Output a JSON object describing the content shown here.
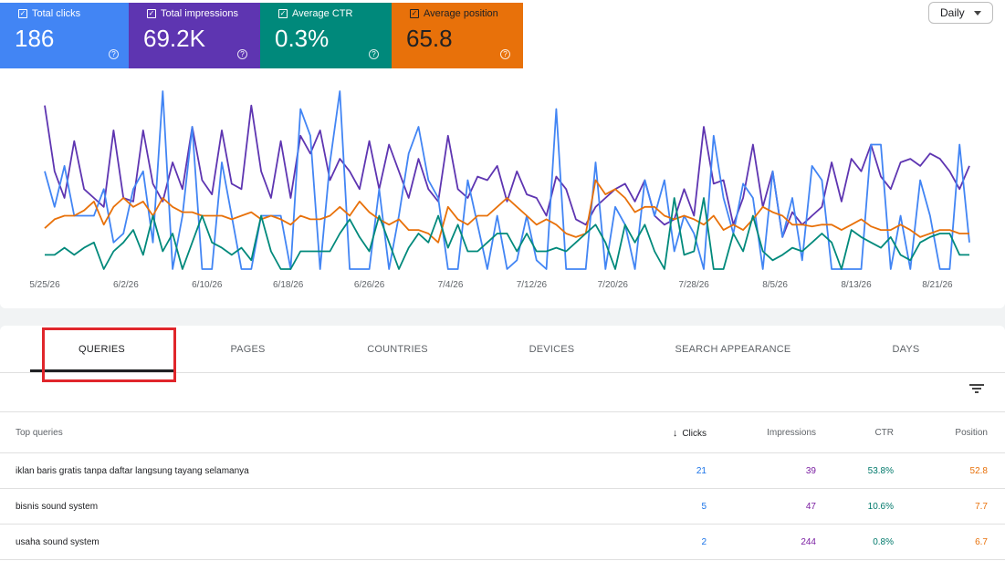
{
  "metrics": [
    {
      "label": "Total clicks",
      "value": "186",
      "color": "#4285f4",
      "key": "clicks"
    },
    {
      "label": "Total impressions",
      "value": "69.2K",
      "color": "#5e35b1",
      "key": "impressions"
    },
    {
      "label": "Average CTR",
      "value": "0.3%",
      "color": "#00897b",
      "key": "ctr"
    },
    {
      "label": "Average position",
      "value": "65.8",
      "color": "#e8710a",
      "key": "position"
    }
  ],
  "period_select": {
    "value": "Daily"
  },
  "chart_data": {
    "type": "line",
    "x_ticks": [
      "5/25/26",
      "6/2/26",
      "6/10/26",
      "6/18/26",
      "6/26/26",
      "7/4/26",
      "7/12/26",
      "7/20/26",
      "7/28/26",
      "8/5/26",
      "8/13/26",
      "8/21/26"
    ],
    "grid": false,
    "legend": "none",
    "note": "Four series normalized to a 0-100 relative scale (no y-axis shown)",
    "series": [
      {
        "color": "#5e35b1",
        "values": [
          92,
          55,
          40,
          72,
          45,
          40,
          35,
          78,
          40,
          38,
          78,
          48,
          38,
          60,
          45,
          80,
          50,
          42,
          78,
          48,
          45,
          92,
          55,
          40,
          72,
          40,
          75,
          65,
          78,
          50,
          62,
          55,
          45,
          72,
          45,
          70,
          55,
          40,
          62,
          45,
          38,
          75,
          45,
          40,
          52,
          50,
          58,
          38,
          55,
          42,
          40,
          30,
          52,
          45,
          28,
          25,
          35,
          40,
          45,
          48,
          38,
          50,
          30,
          25,
          28,
          45,
          30,
          80,
          48,
          50,
          25,
          40,
          70,
          35,
          55,
          18,
          32,
          25,
          30,
          35,
          60,
          38,
          62,
          55,
          70,
          52,
          45,
          60,
          62,
          58,
          65,
          62,
          55,
          45,
          58
        ]
      },
      {
        "color": "#4285f4",
        "values": [
          55,
          35,
          58,
          30,
          30,
          30,
          45,
          15,
          20,
          45,
          55,
          15,
          100,
          0,
          30,
          80,
          0,
          0,
          60,
          30,
          0,
          0,
          30,
          30,
          30,
          0,
          90,
          75,
          0,
          60,
          100,
          0,
          0,
          0,
          45,
          0,
          30,
          65,
          80,
          50,
          40,
          0,
          0,
          50,
          25,
          0,
          30,
          0,
          5,
          30,
          5,
          0,
          90,
          0,
          0,
          0,
          60,
          0,
          35,
          25,
          0,
          50,
          30,
          50,
          10,
          30,
          20,
          0,
          75,
          40,
          20,
          48,
          40,
          0,
          55,
          18,
          40,
          5,
          58,
          50,
          0,
          0,
          0,
          0,
          70,
          70,
          0,
          30,
          0,
          50,
          30,
          0,
          0,
          70,
          15
        ]
      },
      {
        "color": "#e8710a",
        "values": [
          23,
          28,
          30,
          30,
          33,
          38,
          25,
          35,
          40,
          35,
          38,
          30,
          40,
          35,
          32,
          32,
          30,
          30,
          30,
          28,
          30,
          32,
          28,
          30,
          28,
          25,
          30,
          28,
          28,
          30,
          35,
          30,
          38,
          32,
          28,
          25,
          28,
          22,
          22,
          20,
          15,
          35,
          28,
          25,
          30,
          30,
          35,
          40,
          35,
          30,
          25,
          28,
          25,
          20,
          18,
          20,
          50,
          42,
          45,
          40,
          32,
          35,
          35,
          30,
          28,
          30,
          28,
          25,
          30,
          22,
          25,
          22,
          28,
          35,
          32,
          30,
          25,
          25,
          24,
          25,
          25,
          22,
          25,
          28,
          24,
          22,
          22,
          25,
          22,
          18,
          20,
          22,
          22,
          20,
          20
        ]
      },
      {
        "color": "#00897b",
        "values": [
          8,
          8,
          12,
          8,
          12,
          15,
          0,
          10,
          15,
          22,
          8,
          30,
          10,
          20,
          0,
          15,
          30,
          15,
          12,
          8,
          12,
          5,
          30,
          10,
          0,
          0,
          10,
          10,
          10,
          10,
          20,
          28,
          18,
          10,
          30,
          15,
          0,
          12,
          20,
          15,
          30,
          12,
          25,
          10,
          10,
          15,
          20,
          20,
          10,
          20,
          10,
          10,
          12,
          10,
          15,
          20,
          25,
          15,
          0,
          25,
          15,
          25,
          10,
          0,
          40,
          8,
          10,
          40,
          0,
          0,
          20,
          10,
          30,
          10,
          5,
          8,
          12,
          10,
          15,
          20,
          15,
          0,
          22,
          18,
          15,
          12,
          18,
          8,
          5,
          15,
          18,
          20,
          20,
          8,
          8
        ]
      }
    ]
  },
  "tabs": [
    {
      "label": "QUERIES"
    },
    {
      "label": "PAGES"
    },
    {
      "label": "COUNTRIES"
    },
    {
      "label": "DEVICES"
    },
    {
      "label": "SEARCH APPEARANCE"
    },
    {
      "label": "DAYS"
    }
  ],
  "table": {
    "headers": {
      "query": "Top queries",
      "clicks": "Clicks",
      "impressions": "Impressions",
      "ctr": "CTR",
      "position": "Position"
    },
    "rows": [
      {
        "query": "iklan baris gratis tanpa daftar langsung tayang selamanya",
        "clicks": "21",
        "impressions": "39",
        "ctr": "53.8%",
        "position": "52.8"
      },
      {
        "query": "bisnis sound system",
        "clicks": "5",
        "impressions": "47",
        "ctr": "10.6%",
        "position": "7.7"
      },
      {
        "query": "usaha sound system",
        "clicks": "2",
        "impressions": "244",
        "ctr": "0.8%",
        "position": "6.7"
      }
    ]
  }
}
